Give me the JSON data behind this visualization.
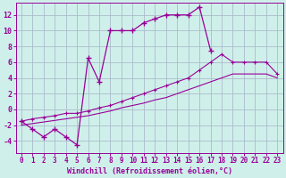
{
  "bg_color": "#cff0ea",
  "line_color": "#990099",
  "grid_color": "#aabbcc",
  "xlabel": "Windchill (Refroidissement éolien,°C)",
  "xlim": [
    -0.5,
    23.5
  ],
  "ylim": [
    -5.5,
    13.5
  ],
  "yticks": [
    -4,
    -2,
    0,
    2,
    4,
    6,
    8,
    10,
    12
  ],
  "xticks": [
    0,
    1,
    2,
    3,
    4,
    5,
    6,
    7,
    8,
    9,
    10,
    11,
    12,
    13,
    14,
    15,
    16,
    17,
    18,
    19,
    20,
    21,
    22,
    23
  ],
  "series1_x": [
    0,
    1,
    2,
    3,
    4,
    5,
    6,
    7,
    8,
    9,
    10,
    11,
    12,
    13,
    14,
    15,
    16,
    17
  ],
  "series1_y": [
    -1.5,
    -2.5,
    -3.5,
    -2.5,
    -3.5,
    -4.5,
    6.5,
    3.5,
    10.0,
    10.0,
    10.0,
    11.0,
    11.5,
    12.0,
    12.0,
    12.0,
    13.0,
    7.5
  ],
  "series2_x": [
    0,
    1,
    2,
    3,
    4,
    5,
    6,
    7,
    8,
    9,
    10,
    11,
    12,
    13,
    14,
    15,
    16,
    17,
    18,
    19,
    20,
    21,
    22,
    23
  ],
  "series2_y": [
    -1.5,
    -1.2,
    -1.0,
    -0.8,
    -0.5,
    -0.5,
    -0.2,
    0.2,
    0.5,
    1.0,
    1.5,
    2.0,
    2.5,
    3.0,
    3.5,
    4.0,
    5.0,
    6.0,
    7.0,
    6.0,
    6.0,
    6.0,
    6.0,
    4.5
  ],
  "series3_x": [
    0,
    1,
    2,
    3,
    4,
    5,
    6,
    7,
    8,
    9,
    10,
    11,
    12,
    13,
    14,
    15,
    16,
    17,
    18,
    19,
    20,
    21,
    22,
    23
  ],
  "series3_y": [
    -2.0,
    -1.8,
    -1.6,
    -1.4,
    -1.2,
    -1.0,
    -0.8,
    -0.5,
    -0.2,
    0.2,
    0.5,
    0.8,
    1.2,
    1.5,
    2.0,
    2.5,
    3.0,
    3.5,
    4.0,
    4.5,
    4.5,
    4.5,
    4.5,
    4.0
  ]
}
